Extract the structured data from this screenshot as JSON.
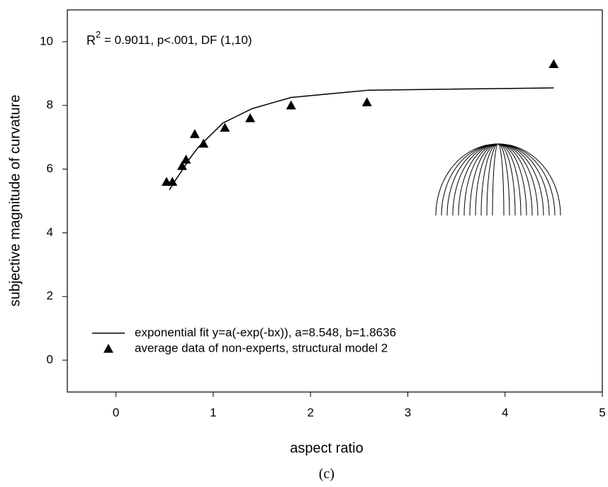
{
  "chart_data": {
    "type": "scatter",
    "x_label": "aspect ratio",
    "y_label": "subjective magnitude of curvature",
    "caption": "(c)",
    "annotation": {
      "base": "R",
      "sup": "2",
      "rest": " = 0.9011, p<.001, DF (1,10)"
    },
    "xlim": [
      -0.5,
      5
    ],
    "ylim": [
      -1,
      11
    ],
    "xticks": [
      0,
      1,
      2,
      3,
      4,
      5
    ],
    "yticks": [
      0,
      2,
      4,
      6,
      8,
      10
    ],
    "series": [
      {
        "name": "exponential fit y=a(-exp(-bx)), a=8.548, b=1.8636",
        "kind": "line",
        "color": "#000000",
        "x": [
          0.55,
          0.6,
          0.7,
          0.75,
          0.85,
          0.9,
          1.1,
          1.4,
          1.8,
          2.6,
          4.5
        ],
        "values": [
          5.35,
          5.6,
          6.05,
          6.3,
          6.7,
          6.85,
          7.45,
          7.9,
          8.25,
          8.48,
          8.55
        ]
      },
      {
        "name": "average data of non-experts, structural model 2",
        "kind": "marker",
        "color": "#000000",
        "x": [
          0.52,
          0.58,
          0.68,
          0.72,
          0.81,
          0.9,
          1.12,
          1.38,
          1.8,
          2.58,
          4.5
        ],
        "values": [
          5.6,
          5.6,
          6.1,
          6.3,
          7.1,
          6.8,
          7.3,
          7.6,
          8.0,
          8.1,
          9.3
        ]
      }
    ]
  }
}
